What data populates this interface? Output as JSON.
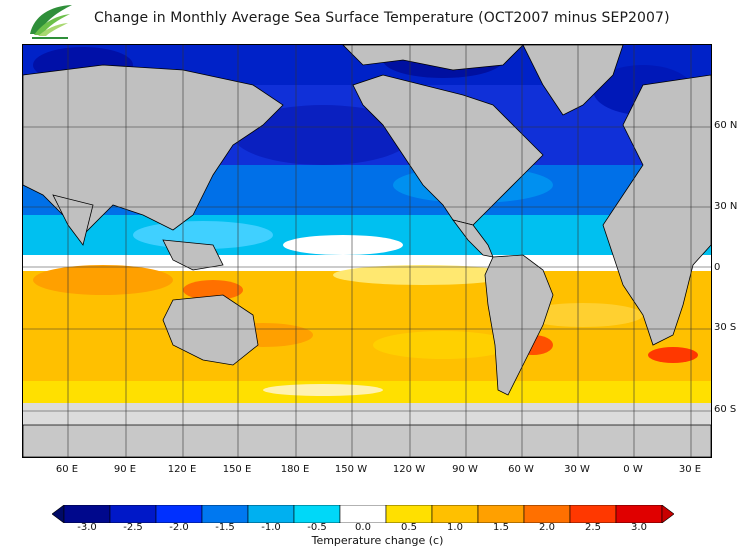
{
  "header": {
    "title": "Change in Monthly Average Sea Surface Temperature (OCT2007 minus SEP2007)"
  },
  "map": {
    "lat_labels": [
      "60 N",
      "30 N",
      "0",
      "30 S",
      "60 S"
    ],
    "lon_labels": [
      "60 E",
      "90 E",
      "120 E",
      "150 E",
      "180 E",
      "150 W",
      "120 W",
      "90 W",
      "60 W",
      "30 W",
      "0 W",
      "30 E"
    ],
    "land_color": "#c0c0c0",
    "ice_color": "#dcdcdc",
    "grid_color": "#333333"
  },
  "colorbar": {
    "title": "Temperature change  (c)",
    "tick_labels": [
      "-3.0",
      "-2.5",
      "-2.0",
      "-1.5",
      "-1.0",
      "-0.5",
      "0.0",
      "0.5",
      "1.0",
      "1.5",
      "2.0",
      "2.5",
      "3.0"
    ],
    "low_end_color": "#000a66",
    "high_end_color": "#c80000",
    "colors": [
      "#00088c",
      "#0018c8",
      "#0030ff",
      "#0078f0",
      "#00b0f0",
      "#00d8f8",
      "#ffffff",
      "#ffe000",
      "#ffc000",
      "#ffa000",
      "#ff7000",
      "#ff3800",
      "#e00000"
    ]
  }
}
